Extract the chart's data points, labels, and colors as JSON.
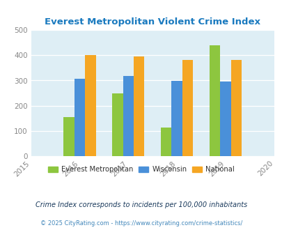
{
  "title": "Everest Metropolitan Violent Crime Index",
  "years": [
    2015,
    2016,
    2017,
    2018,
    2019,
    2020
  ],
  "bar_years": [
    2016,
    2017,
    2018,
    2019
  ],
  "everest": [
    155,
    250,
    113,
    440
  ],
  "wisconsin": [
    307,
    318,
    298,
    295
  ],
  "national": [
    400,
    395,
    381,
    381
  ],
  "colors": {
    "everest": "#8dc63f",
    "wisconsin": "#4a90d9",
    "national": "#f5a623"
  },
  "ylim": [
    0,
    500
  ],
  "yticks": [
    0,
    100,
    200,
    300,
    400,
    500
  ],
  "xlim": [
    2015,
    2020
  ],
  "bg_color": "#deeef5",
  "legend_labels": [
    "Everest Metropolitan",
    "Wisconsin",
    "National"
  ],
  "footnote1": "Crime Index corresponds to incidents per 100,000 inhabitants",
  "footnote2": "© 2025 CityRating.com - https://www.cityrating.com/crime-statistics/",
  "title_color": "#1a7abf",
  "footnote1_color": "#1a3a5c",
  "footnote2_color": "#4488bb",
  "tick_color": "#888888"
}
